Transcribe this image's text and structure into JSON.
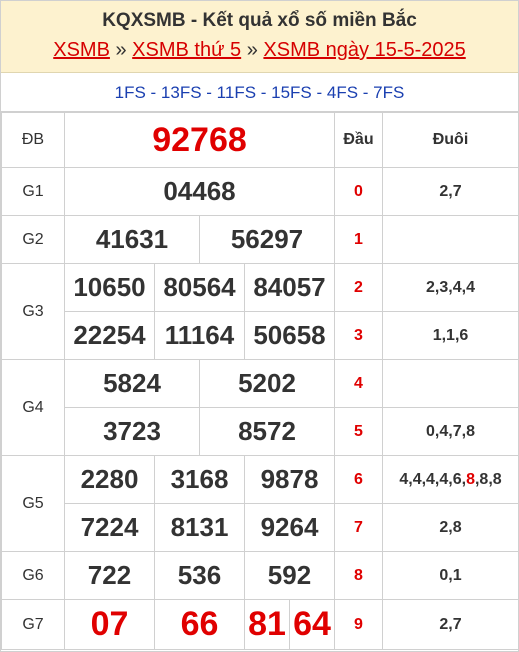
{
  "header": {
    "title": "KQXSMB - Kết quả xổ số miền Bắc",
    "breadcrumb": [
      "XSMB",
      "XSMB thứ 5",
      "XSMB ngày 15-5-2025"
    ],
    "sep": "»"
  },
  "codes": "1FS - 13FS - 11FS - 15FS - 4FS - 7FS",
  "table": {
    "col_dau": "Đầu",
    "col_duoi": "Đuôi",
    "prizes": {
      "db": {
        "label": "ĐB",
        "numbers": [
          "92768"
        ]
      },
      "g1": {
        "label": "G1",
        "numbers": [
          "04468"
        ]
      },
      "g2": {
        "label": "G2",
        "numbers": [
          "41631",
          "56297"
        ]
      },
      "g3": {
        "label": "G3",
        "numbers": [
          "10650",
          "80564",
          "84057",
          "22254",
          "11164",
          "50658"
        ]
      },
      "g4": {
        "label": "G4",
        "numbers": [
          "5824",
          "5202",
          "3723",
          "8572"
        ]
      },
      "g5": {
        "label": "G5",
        "numbers": [
          "2280",
          "3168",
          "9878",
          "7224",
          "8131",
          "9264"
        ]
      },
      "g6": {
        "label": "G6",
        "numbers": [
          "722",
          "536",
          "592"
        ]
      },
      "g7": {
        "label": "G7",
        "numbers": [
          "07",
          "66",
          "81",
          "64"
        ]
      }
    },
    "dau_duoi": [
      {
        "dau": "0",
        "duoi": "2,7"
      },
      {
        "dau": "1",
        "duoi": ""
      },
      {
        "dau": "2",
        "duoi": "2,3,4,4"
      },
      {
        "dau": "3",
        "duoi": "1,1,6"
      },
      {
        "dau": "4",
        "duoi": ""
      },
      {
        "dau": "5",
        "duoi": "0,4,7,8"
      },
      {
        "dau": "6",
        "duoi_pre": "4,4,4,4,6,",
        "duoi_hl": "8",
        "duoi_post": ",8,8"
      },
      {
        "dau": "7",
        "duoi": "2,8"
      },
      {
        "dau": "8",
        "duoi": "0,1"
      },
      {
        "dau": "9",
        "duoi": "2,7"
      }
    ]
  },
  "colors": {
    "accent": "#e00000",
    "header_bg": "#fdf2cf",
    "code_blue": "#1a3fb0"
  }
}
